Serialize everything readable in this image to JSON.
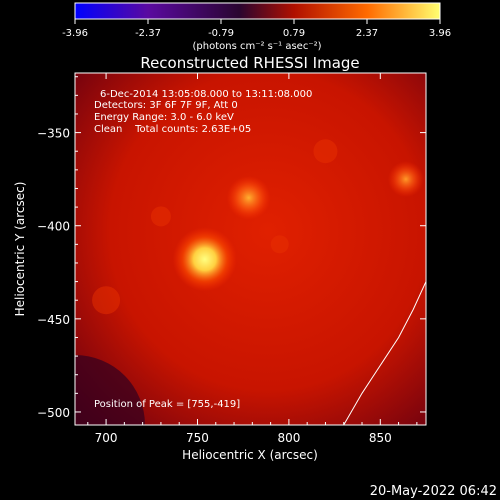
{
  "title": "Reconstructed RHESSI Image",
  "colorbar": {
    "ticks": [
      "-3.96",
      "-2.37",
      "-0.79",
      "0.79",
      "2.37",
      "3.96"
    ],
    "units": "(photons cm⁻² s⁻¹ asec⁻²)",
    "colors": [
      "#0000ff",
      "#5a0aa0",
      "#2a0530",
      "#b01000",
      "#ff6a00",
      "#ffff70"
    ]
  },
  "info": {
    "time": "6-Dec-2014 13:05:08.000 to 13:11:08.000",
    "detectors": "Detectors: 3F 6F 7F 9F, Att 0",
    "energy": "Energy Range: 3.0 - 6.0 keV",
    "clean": "Clean    Total counts: 2.63E+05"
  },
  "peak_label": "Position of Peak = [755,-419]",
  "axes": {
    "xlabel": "Heliocentric X (arcsec)",
    "ylabel": "Heliocentric Y (arcsec)",
    "xlim": [
      683,
      875
    ],
    "ylim": [
      -507,
      -318
    ],
    "xticks": [
      700,
      750,
      800,
      850
    ],
    "yticks": [
      -350,
      -400,
      -450,
      -500
    ]
  },
  "image_data": {
    "type": "heatmap",
    "background_color": "#d01800",
    "sources": [
      {
        "x": 754,
        "y": -418,
        "peak_color": "#ffff70"
      },
      {
        "x": 778,
        "y": -385,
        "peak_color": "#ffb030"
      },
      {
        "x": 864,
        "y": -375,
        "peak_color": "#ff9020"
      }
    ],
    "limb_curve": [
      [
        830,
        -507
      ],
      [
        840,
        -490
      ],
      [
        850,
        -475
      ],
      [
        860,
        -460
      ],
      [
        868,
        -445
      ],
      [
        875,
        -430
      ]
    ]
  },
  "footer_date": "20-May-2022 06:42"
}
